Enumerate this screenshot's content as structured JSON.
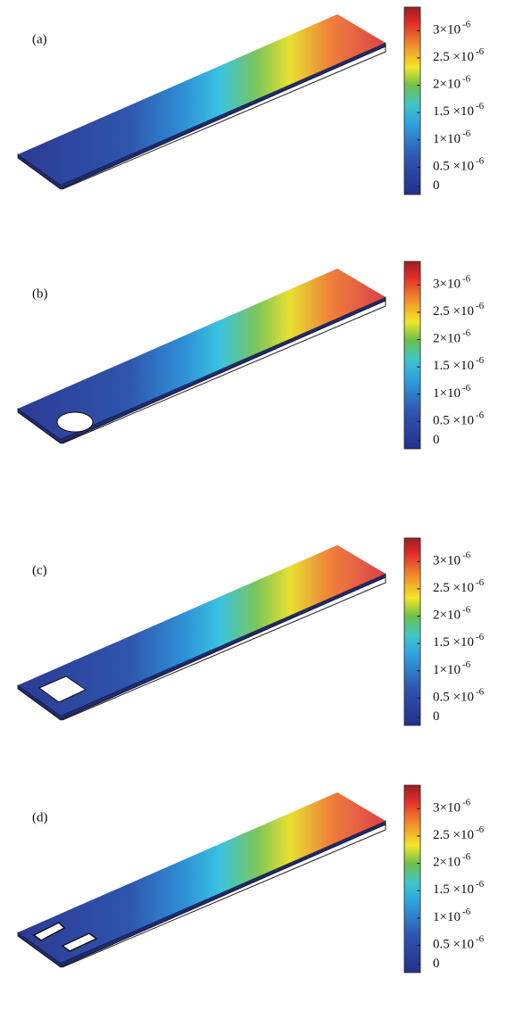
{
  "panels": [
    {
      "label": "(a)",
      "colorbar": {
        "range": [
          0,
          3.43e-06
        ],
        "ticks": [
          {
            "value": 3e-06,
            "mantissa": "3×10",
            "exponent": "-6"
          },
          {
            "value": 2.5e-06,
            "mantissa": "2.5 ×10",
            "exponent": "-6"
          },
          {
            "value": 2e-06,
            "mantissa": "2×10",
            "exponent": "-6"
          },
          {
            "value": 1.5e-06,
            "mantissa": "1.5 ×10",
            "exponent": "-6"
          },
          {
            "value": 1e-06,
            "mantissa": "1×10",
            "exponent": "-6"
          },
          {
            "value": 5e-07,
            "mantissa": "0.5 ×10",
            "exponent": "-6"
          },
          {
            "value": 0,
            "mantissa": "0"
          }
        ]
      }
    },
    {
      "label": "(b)",
      "colorbar": {
        "range": [
          0,
          3.43e-06
        ],
        "ticks": [
          {
            "value": 3e-06,
            "mantissa": "3×10",
            "exponent": "-6"
          },
          {
            "value": 2.5e-06,
            "mantissa": "2.5 ×10",
            "exponent": "-6"
          },
          {
            "value": 2e-06,
            "mantissa": "2×10",
            "exponent": "-6"
          },
          {
            "value": 1.5e-06,
            "mantissa": "1.5 ×10",
            "exponent": "-6"
          },
          {
            "value": 1e-06,
            "mantissa": "1×10",
            "exponent": "-6"
          },
          {
            "value": 5e-07,
            "mantissa": "0.5 ×10",
            "exponent": "-6"
          },
          {
            "value": 0,
            "mantissa": "0"
          }
        ]
      }
    },
    {
      "label": "(c)",
      "colorbar": {
        "range": [
          0,
          3.43e-06
        ],
        "ticks": [
          {
            "value": 3e-06,
            "mantissa": "3×10",
            "exponent": "-6"
          },
          {
            "value": 2.5e-06,
            "mantissa": "2.5 ×10",
            "exponent": "-6"
          },
          {
            "value": 2e-06,
            "mantissa": "2×10",
            "exponent": "-6"
          },
          {
            "value": 1.5e-06,
            "mantissa": "1.5 ×10",
            "exponent": "-6"
          },
          {
            "value": 1e-06,
            "mantissa": "1×10",
            "exponent": "-6"
          },
          {
            "value": 5e-07,
            "mantissa": "0.5 ×10",
            "exponent": "-6"
          },
          {
            "value": 0,
            "mantissa": "0"
          }
        ]
      }
    },
    {
      "label": "(d)",
      "colorbar": {
        "range": [
          0,
          3.43e-06
        ],
        "ticks": [
          {
            "value": 3e-06,
            "mantissa": "3×10",
            "exponent": "-6"
          },
          {
            "value": 2.5e-06,
            "mantissa": "2.5 ×10",
            "exponent": "-6"
          },
          {
            "value": 2e-06,
            "mantissa": "2×10",
            "exponent": "-6"
          },
          {
            "value": 1.5e-06,
            "mantissa": "1.5 ×10",
            "exponent": "-6"
          },
          {
            "value": 1e-06,
            "mantissa": "1×10",
            "exponent": "-6"
          },
          {
            "value": 5e-07,
            "mantissa": "0.5 ×10",
            "exponent": "-6"
          },
          {
            "value": 0,
            "mantissa": "0"
          }
        ]
      }
    }
  ]
}
